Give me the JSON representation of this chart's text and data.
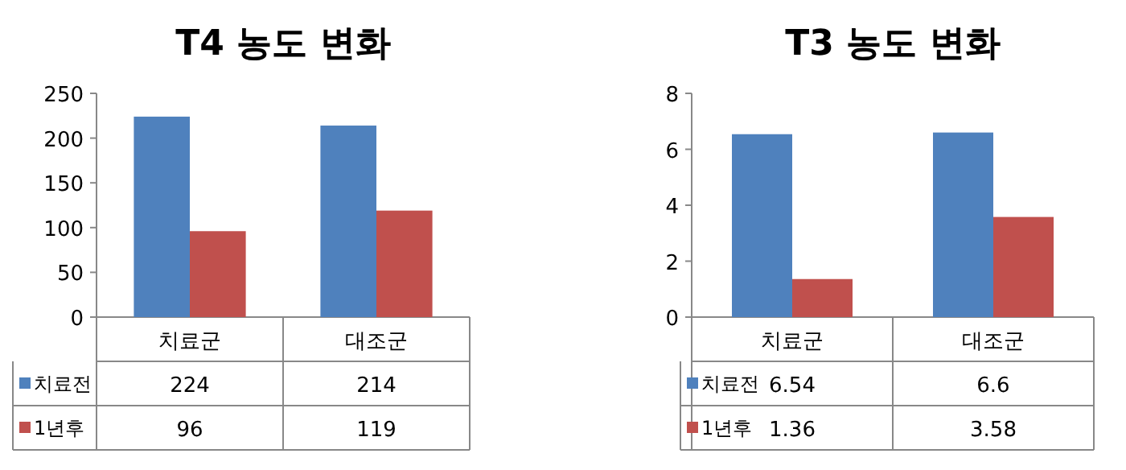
{
  "chart_data": [
    {
      "type": "bar",
      "title": "T4 농도 변화",
      "categories": [
        "치료군",
        "대조군"
      ],
      "series": [
        {
          "name": "치료전",
          "color": "#4f81bd",
          "values": [
            224,
            214
          ]
        },
        {
          "name": "1년후",
          "color": "#c0504d",
          "values": [
            96,
            119
          ]
        }
      ],
      "ylim": [
        0,
        250
      ],
      "yticks": [
        0,
        50,
        100,
        150,
        200,
        250
      ],
      "data_labels": true,
      "legend": "bottom"
    },
    {
      "type": "bar",
      "title": "T3 농도 변화",
      "categories": [
        "치료군",
        "대조군"
      ],
      "series": [
        {
          "name": "치료전",
          "color": "#4f81bd",
          "values": [
            6.54,
            6.6
          ]
        },
        {
          "name": "1년후",
          "color": "#c0504d",
          "values": [
            1.36,
            3.58
          ]
        }
      ],
      "ylim": [
        0,
        8
      ],
      "yticks": [
        0,
        2,
        4,
        6,
        8
      ],
      "data_labels": true,
      "legend": "bottom"
    }
  ]
}
